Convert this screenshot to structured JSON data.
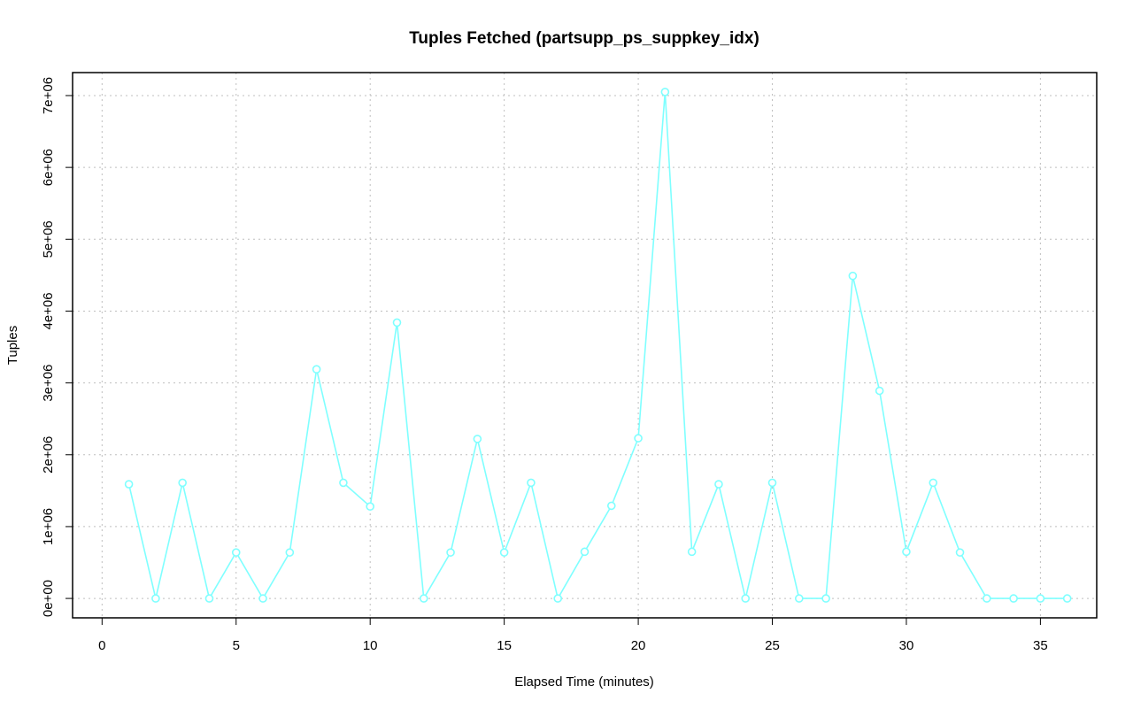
{
  "chart_data": {
    "type": "line",
    "title": "Tuples Fetched (partsupp_ps_suppkey_idx)",
    "xlabel": "Elapsed Time (minutes)",
    "ylabel": "Tuples",
    "xlim": [
      -1.1,
      37.1
    ],
    "ylim": [
      -270000,
      7320000
    ],
    "x_ticks": [
      0,
      5,
      10,
      15,
      20,
      25,
      30,
      35
    ],
    "x_tick_labels": [
      "0",
      "5",
      "10",
      "15",
      "20",
      "25",
      "30",
      "35"
    ],
    "y_ticks": [
      0,
      1000000,
      2000000,
      3000000,
      4000000,
      5000000,
      6000000,
      7000000
    ],
    "y_tick_labels": [
      "0e+00",
      "1e+06",
      "2e+06",
      "3e+06",
      "4e+06",
      "5e+06",
      "6e+06",
      "7e+06"
    ],
    "grid": true,
    "series_color": "#7fffff",
    "series": [
      {
        "x": [
          1,
          2,
          3,
          4,
          5,
          6,
          7,
          8,
          9,
          10,
          11,
          12,
          13,
          14,
          15,
          16,
          17,
          18,
          19,
          20,
          21,
          22,
          23,
          24,
          25,
          26,
          27,
          28,
          29,
          30,
          31,
          32,
          33,
          34,
          35,
          36
        ],
        "values": [
          1590000,
          0,
          1610000,
          0,
          640000,
          0,
          640000,
          3190000,
          1610000,
          1280000,
          3840000,
          0,
          640000,
          2220000,
          640000,
          1610000,
          0,
          650000,
          1290000,
          2230000,
          7050000,
          650000,
          1590000,
          0,
          1610000,
          0,
          0,
          4490000,
          2890000,
          650000,
          1610000,
          640000,
          0,
          0,
          0,
          0
        ]
      }
    ]
  }
}
